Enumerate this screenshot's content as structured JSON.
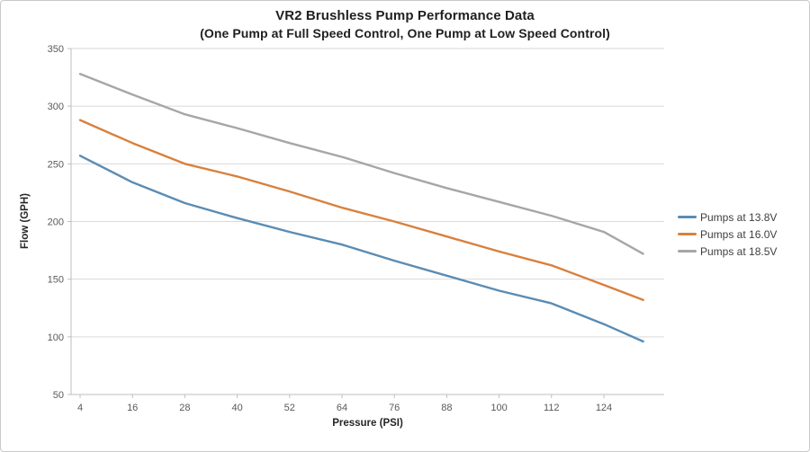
{
  "title": "VR2 Brushless Pump Performance Data",
  "subtitle": "(One Pump at Full Speed Control, One Pump at Low Speed Control)",
  "chart_data": {
    "type": "line",
    "title": "VR2 Brushless Pump Performance Data",
    "subtitle": "(One Pump at Full Speed Control, One Pump at Low Speed Control)",
    "xlabel": "Pressure (PSI)",
    "ylabel": "Flow (GPH)",
    "xlim": [
      4,
      136
    ],
    "ylim": [
      50,
      350
    ],
    "x_ticks": [
      4,
      16,
      28,
      40,
      52,
      64,
      76,
      88,
      100,
      112,
      124
    ],
    "y_ticks": [
      50,
      100,
      150,
      200,
      250,
      300,
      350
    ],
    "grid": "horizontal",
    "legend_position": "right",
    "x": [
      4,
      16,
      28,
      40,
      52,
      64,
      76,
      88,
      100,
      112,
      124,
      133
    ],
    "series": [
      {
        "name": "Pumps at 13.8V",
        "color": "#5A8CB4",
        "values": [
          257,
          234,
          216,
          203,
          191,
          180,
          166,
          153,
          140,
          129,
          111,
          96
        ]
      },
      {
        "name": "Pumps at 16.0V",
        "color": "#D9803C",
        "values": [
          288,
          268,
          250,
          239,
          226,
          212,
          200,
          187,
          174,
          162,
          145,
          132
        ]
      },
      {
        "name": "Pumps at 18.5V",
        "color": "#A6A6A6",
        "values": [
          328,
          310,
          293,
          281,
          268,
          256,
          242,
          229,
          217,
          205,
          191,
          172
        ]
      }
    ],
    "colors": {
      "gridline": "#d9d9d9",
      "axis": "#bfbfbf",
      "tick_label": "#595959"
    }
  }
}
